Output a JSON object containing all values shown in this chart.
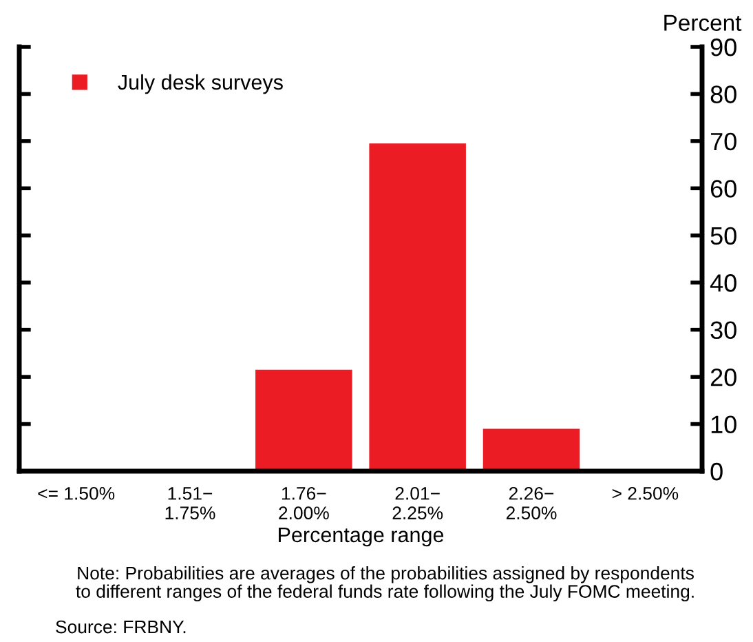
{
  "chart_data": {
    "type": "bar",
    "categories": [
      "<= 1.50%",
      "1.51−\n1.75%",
      "1.76−\n2.00%",
      "2.01−\n2.25%",
      "2.26−\n2.50%",
      "> 2.50%"
    ],
    "series": [
      {
        "name": "July desk surveys",
        "color": "#ec1c24",
        "values": [
          0,
          0,
          21.5,
          69.5,
          9,
          0
        ]
      }
    ],
    "ylim": [
      0,
      90
    ],
    "yticks": [
      0,
      10,
      20,
      30,
      40,
      50,
      60,
      70,
      80,
      90
    ],
    "xlabel": "Percentage range",
    "ylabel": "Percent",
    "legend": "top left",
    "grid": false,
    "annotations": [
      "Note: Probabilities are averages of the probabilities assigned by respondents\nto different ranges of the federal funds rate following the July FOMC meeting.",
      "Source: FRBNY."
    ]
  }
}
